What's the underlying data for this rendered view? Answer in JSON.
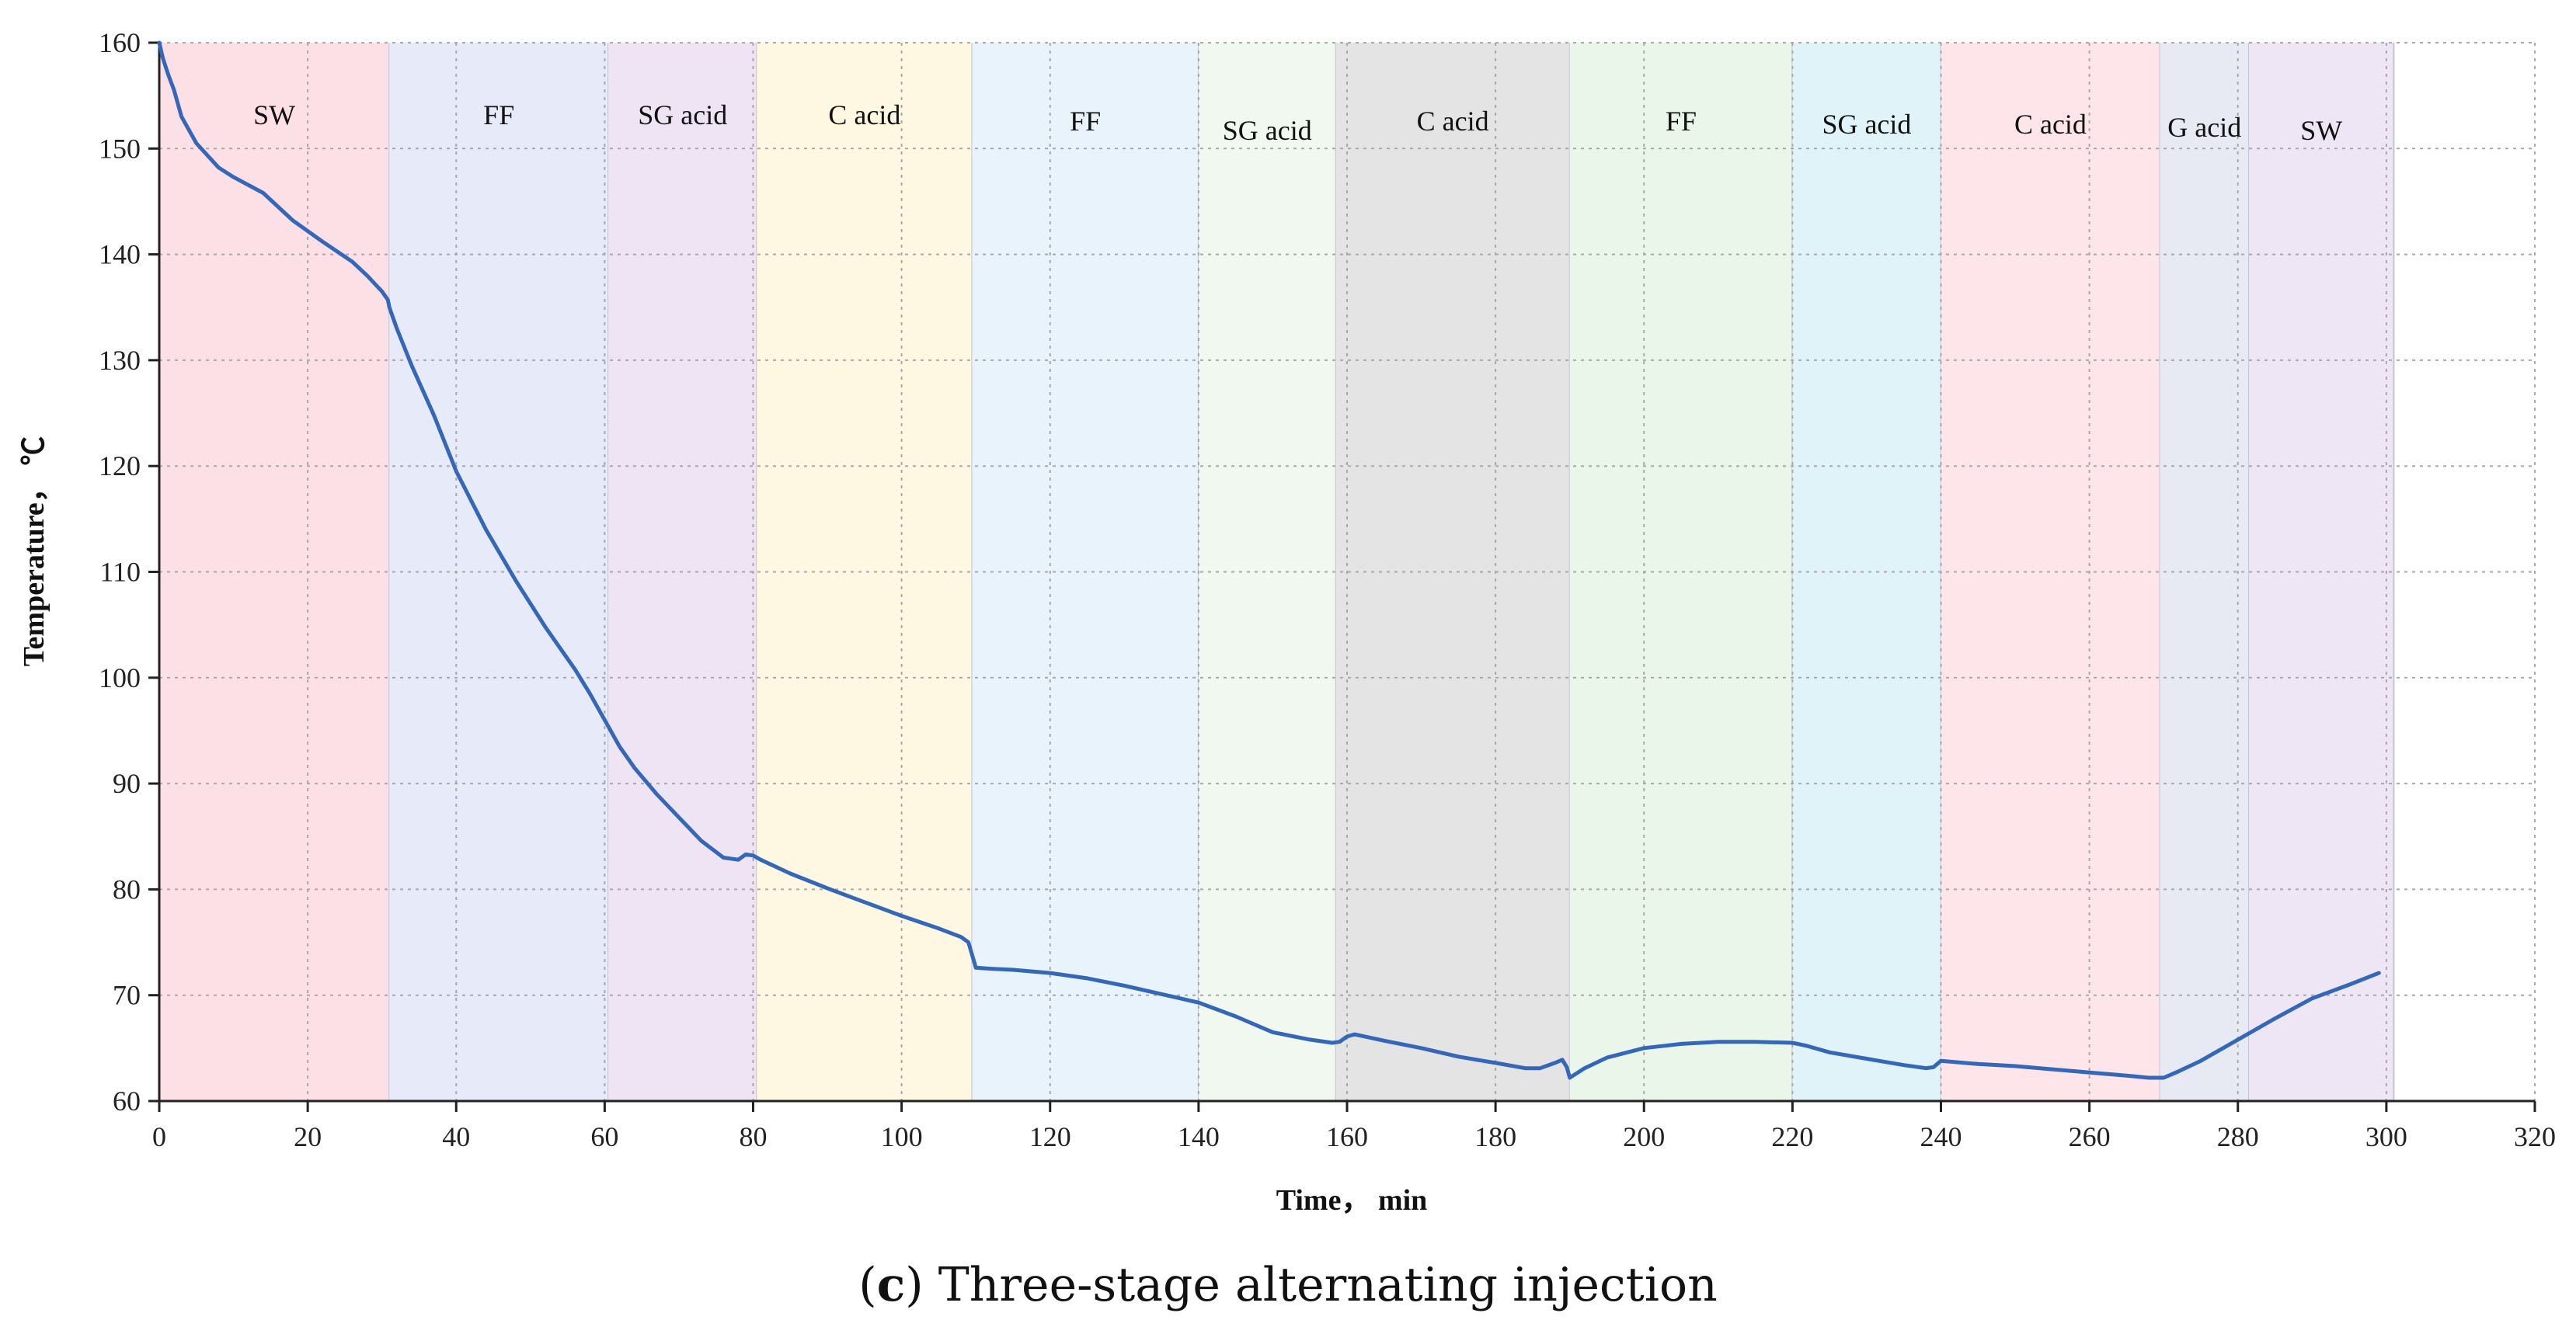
{
  "chart_data": {
    "type": "line",
    "title": "",
    "xlabel": "Time， min",
    "ylabel": "Temperature， ℃",
    "xlim": [
      0,
      320
    ],
    "ylim": [
      60,
      160
    ],
    "x_ticks": [
      0,
      20,
      40,
      60,
      80,
      100,
      120,
      140,
      160,
      180,
      200,
      220,
      240,
      260,
      280,
      300,
      320
    ],
    "y_ticks": [
      60,
      70,
      80,
      90,
      100,
      110,
      120,
      130,
      140,
      150,
      160
    ],
    "grid": true,
    "stages": [
      {
        "label": "SW",
        "start": 0,
        "end": 31,
        "color": "#fde0e6"
      },
      {
        "label": "FF",
        "start": 31,
        "end": 60.5,
        "color": "#e7eaf8"
      },
      {
        "label": "SG acid",
        "start": 60.5,
        "end": 80.5,
        "color": "#eee4f4"
      },
      {
        "label": "C acid",
        "start": 80.5,
        "end": 109.5,
        "color": "#fef7e1"
      },
      {
        "label": "FF",
        "start": 109.5,
        "end": 140,
        "color": "#e8f3fb"
      },
      {
        "label": "SG acid",
        "start": 140,
        "end": 158.5,
        "color": "#f1f8ef"
      },
      {
        "label": "C acid",
        "start": 158.5,
        "end": 190,
        "color": "#e4e4e4"
      },
      {
        "label": "FF",
        "start": 190,
        "end": 220,
        "color": "#eaf6ea"
      },
      {
        "label": "SG acid",
        "start": 220,
        "end": 240,
        "color": "#dff3f9"
      },
      {
        "label": "C acid",
        "start": 240,
        "end": 269.5,
        "color": "#fde5e9"
      },
      {
        "label": "G acid",
        "start": 269.5,
        "end": 281.5,
        "color": "#e7eaf3"
      },
      {
        "label": "SW",
        "start": 281.5,
        "end": 301,
        "color": "#eee6f5"
      }
    ],
    "series": [
      {
        "name": "Temperature",
        "color": "#3567b8",
        "x": [
          0,
          0.5,
          1.2,
          2,
          3,
          5,
          8,
          10,
          14,
          18,
          22,
          26,
          28,
          30,
          30.8,
          31,
          32,
          34,
          37,
          40,
          44,
          48,
          52,
          56,
          58,
          60,
          62,
          64,
          67,
          70,
          73,
          76,
          78,
          79,
          80,
          81,
          85,
          90,
          95,
          100,
          105,
          108,
          109,
          109.5,
          110,
          112,
          115,
          120,
          125,
          130,
          135,
          140,
          145,
          150,
          155,
          158,
          159,
          160,
          161,
          165,
          170,
          175,
          180,
          184,
          186,
          188,
          189,
          189.6,
          190,
          192,
          195,
          200,
          205,
          210,
          215,
          220,
          222,
          225,
          230,
          235,
          238,
          239,
          240,
          245,
          250,
          255,
          260,
          265,
          268,
          270,
          272,
          275,
          280,
          285,
          290,
          295,
          299
        ],
        "values": [
          160,
          158.5,
          157,
          155.5,
          153,
          150.5,
          148.2,
          147.3,
          145.8,
          143.2,
          141.2,
          139.3,
          138,
          136.5,
          135.7,
          135,
          133,
          129.5,
          124.8,
          119.5,
          114,
          109.2,
          104.8,
          100.8,
          98.5,
          96,
          93.5,
          91.5,
          89,
          86.8,
          84.6,
          83,
          82.8,
          83.3,
          83.2,
          82.8,
          81.5,
          80.1,
          78.8,
          77.5,
          76.3,
          75.5,
          75,
          73.8,
          72.6,
          72.5,
          72.4,
          72.1,
          71.6,
          70.9,
          70.1,
          69.3,
          68,
          66.5,
          65.8,
          65.5,
          65.6,
          66.1,
          66.3,
          65.7,
          65,
          64.2,
          63.6,
          63.1,
          63.1,
          63.6,
          63.9,
          63.2,
          62.2,
          63.1,
          64.1,
          65,
          65.4,
          65.6,
          65.6,
          65.5,
          65.2,
          64.6,
          64,
          63.4,
          63.1,
          63.2,
          63.8,
          63.5,
          63.3,
          63,
          62.7,
          62.4,
          62.2,
          62.2,
          62.8,
          63.8,
          65.8,
          67.8,
          69.7,
          71,
          72.1
        ]
      }
    ]
  },
  "caption": {
    "open": "(",
    "letter": "c",
    "rest": ") Three-stage alternating injection"
  }
}
